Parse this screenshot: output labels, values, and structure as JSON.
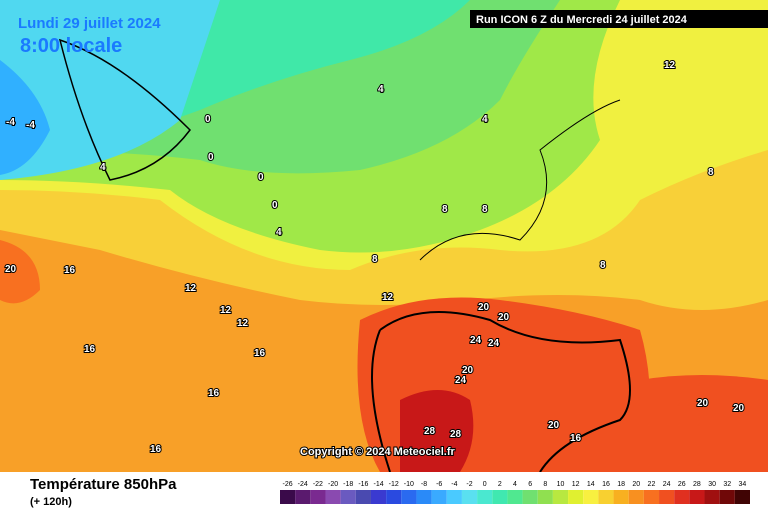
{
  "header": {
    "date": "Lundi 29 juillet 2024",
    "time": "8:00 locale",
    "run": "Run ICON 6 Z du Mercredi 24 juillet 2024"
  },
  "map": {
    "copyright": "Copyright © 2024 Meteociel.fr",
    "contour_labels": [
      "-4",
      "-4",
      "0",
      "0",
      "0",
      "0",
      "4",
      "4",
      "4",
      "4",
      "8",
      "8",
      "8",
      "8",
      "8",
      "12",
      "12",
      "12",
      "12",
      "12",
      "16",
      "16",
      "16",
      "16",
      "16",
      "20",
      "20",
      "20",
      "20",
      "24",
      "24",
      "24",
      "28",
      "28",
      "20",
      "16",
      "20",
      "20"
    ]
  },
  "footer": {
    "title": "Température 850hPa",
    "subtitle": "(+ 120h)"
  },
  "legend": {
    "ticks": [
      -26,
      -24,
      -22,
      -20,
      -18,
      -16,
      -14,
      -12,
      -10,
      -8,
      -6,
      -4,
      -2,
      0,
      2,
      4,
      6,
      8,
      10,
      12,
      14,
      16,
      18,
      20,
      22,
      24,
      26,
      28,
      30,
      32,
      34
    ],
    "colors": [
      "#3a0a4a",
      "#5a1a6e",
      "#7a2a90",
      "#8a4ab0",
      "#6a5ac0",
      "#4a4ab0",
      "#3a3ad0",
      "#2a4ae0",
      "#2a6af0",
      "#2a8af8",
      "#3aaaff",
      "#4acaff",
      "#5ae0f0",
      "#4ae8d0",
      "#40e8b0",
      "#50e890",
      "#70e070",
      "#90e050",
      "#b8e840",
      "#e0f030",
      "#f8f040",
      "#f8d030",
      "#f8b020",
      "#f89020",
      "#f87020",
      "#f05020",
      "#e03020",
      "#c81818",
      "#a01010",
      "#700808",
      "#400404"
    ]
  }
}
